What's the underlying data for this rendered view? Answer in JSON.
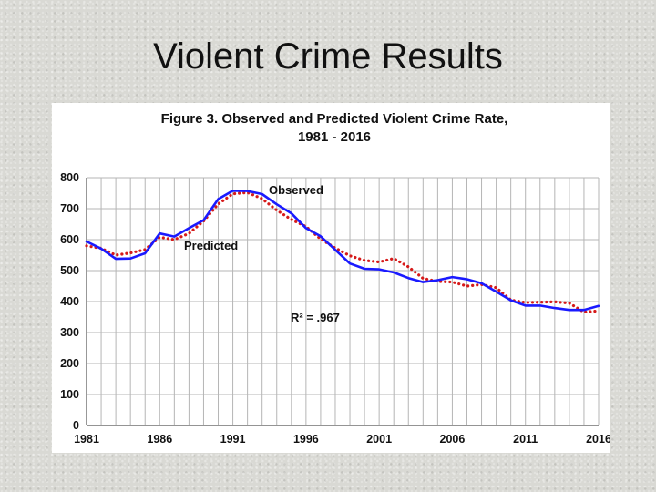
{
  "slide": {
    "title": "Violent Crime Results"
  },
  "chart_data": {
    "type": "line",
    "title": "Figure 3. Observed and Predicted Violent Crime Rate,",
    "subtitle": "1981 - 2016",
    "xlabel": "",
    "ylabel": "",
    "xlim": [
      1981,
      2016
    ],
    "ylim": [
      0,
      800
    ],
    "x_ticks": [
      "1981",
      "1986",
      "1991",
      "1996",
      "2001",
      "2006",
      "2011",
      "2016"
    ],
    "y_ticks": [
      "800",
      "700",
      "600",
      "500",
      "400",
      "300",
      "200",
      "100",
      "0"
    ],
    "grid": true,
    "x": [
      1981,
      1982,
      1983,
      1984,
      1985,
      1986,
      1987,
      1988,
      1989,
      1990,
      1991,
      1992,
      1993,
      1994,
      1995,
      1996,
      1997,
      1998,
      1999,
      2000,
      2001,
      2002,
      2003,
      2004,
      2005,
      2006,
      2007,
      2008,
      2009,
      2010,
      2011,
      2012,
      2013,
      2014,
      2015,
      2016
    ],
    "series": [
      {
        "name": "Observed",
        "color": "#1a1aff",
        "style": "solid",
        "values": [
          594,
          571,
          538,
          539,
          556,
          620,
          610,
          637,
          663,
          731,
          758,
          757,
          747,
          714,
          685,
          637,
          611,
          567,
          523,
          506,
          504,
          494,
          476,
          463,
          469,
          479,
          472,
          459,
          432,
          404,
          387,
          387,
          379,
          373,
          373,
          386
        ]
      },
      {
        "name": "Predicted",
        "color": "#d61a1a",
        "style": "dotted",
        "values": [
          580,
          572,
          550,
          557,
          568,
          608,
          600,
          620,
          660,
          715,
          748,
          752,
          732,
          695,
          665,
          642,
          602,
          573,
          548,
          533,
          528,
          539,
          512,
          475,
          465,
          463,
          450,
          455,
          445,
          405,
          397,
          398,
          399,
          395,
          366,
          370
        ]
      }
    ],
    "annotations": [
      {
        "text": "Observed"
      },
      {
        "text": "Predicted"
      },
      {
        "text": "R² = .967"
      }
    ]
  }
}
